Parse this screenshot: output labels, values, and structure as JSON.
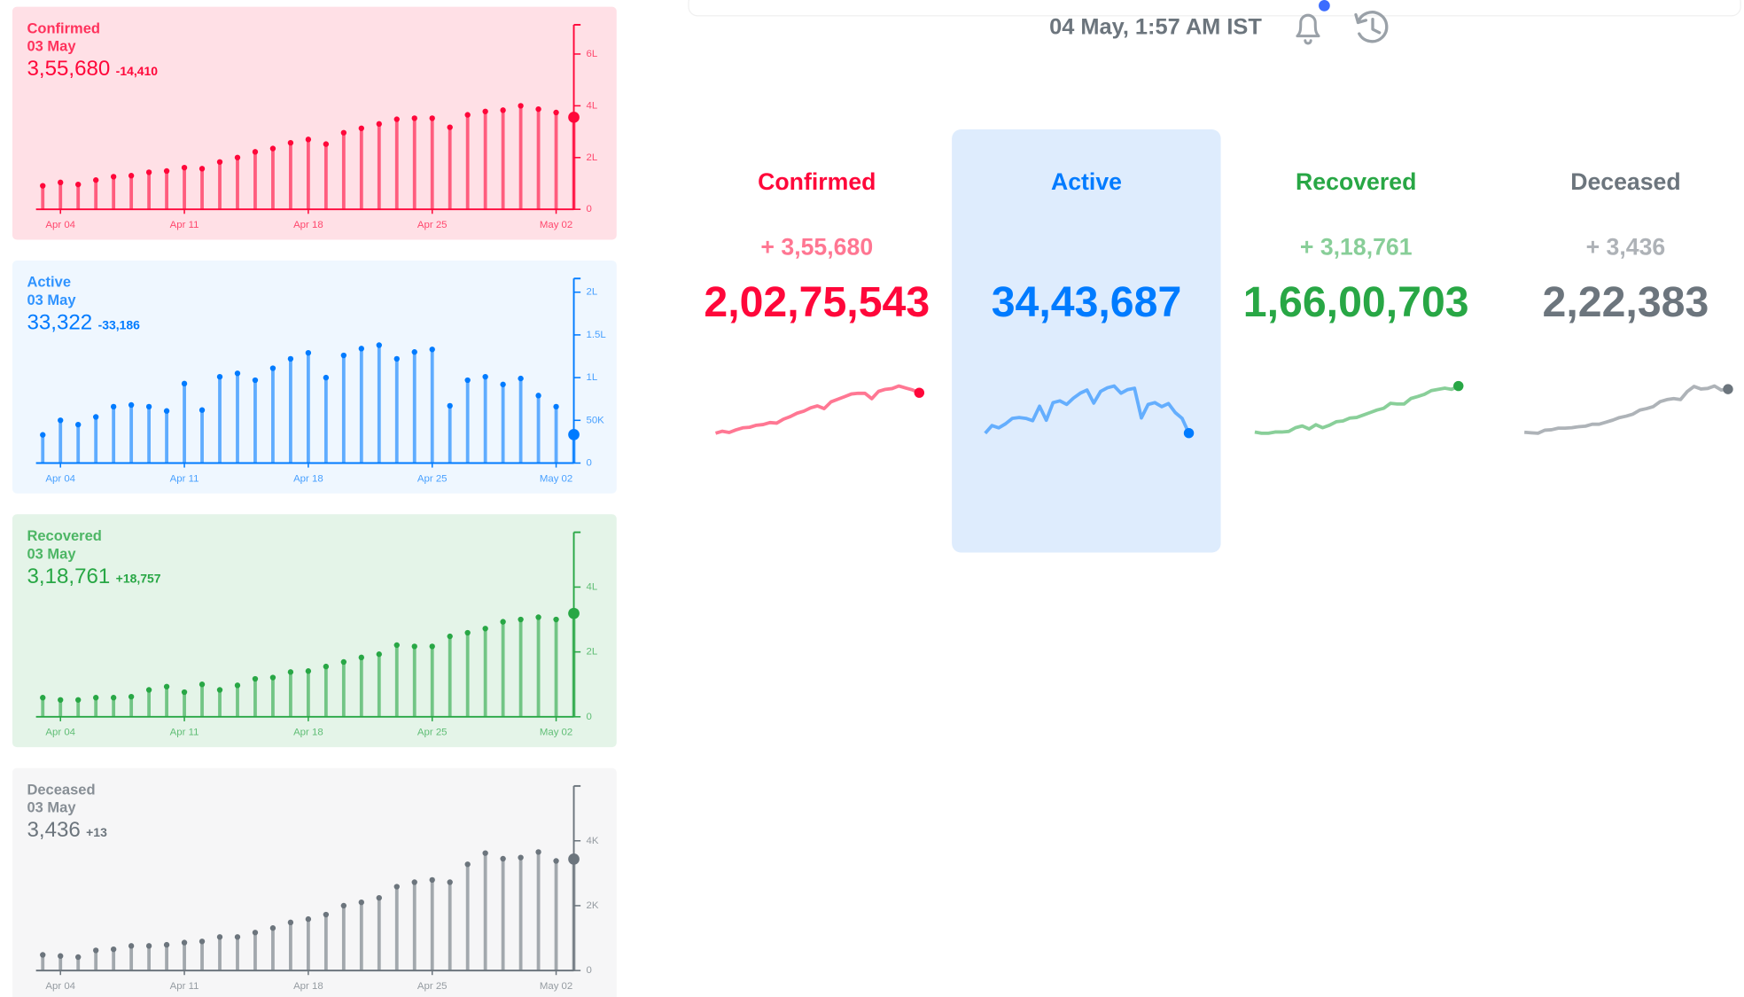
{
  "header": {
    "timestamp": "04 May, 1:57 AM IST"
  },
  "summary": [
    {
      "title": "Confirmed",
      "change": "+ 3,55,680",
      "total": "2,02,75,543"
    },
    {
      "title": "Active",
      "total": "34,43,687"
    },
    {
      "title": "Recovered",
      "change": "+ 3,18,761",
      "total": "1,66,00,703"
    },
    {
      "title": "Deceased",
      "change": "+ 3,436",
      "total": "2,22,383"
    }
  ],
  "chart_data": [
    {
      "type": "lollipop",
      "title": "Confirmed",
      "subtitle": "03 May",
      "total": "3,55,680",
      "change": "-14,410",
      "color": "#ff073a",
      "background": "#ffe0e6",
      "categories": [
        null,
        "Apr 04",
        null,
        null,
        null,
        null,
        null,
        null,
        "Apr 11",
        null,
        null,
        null,
        null,
        null,
        null,
        "Apr 18",
        null,
        null,
        null,
        null,
        null,
        null,
        "Apr 25",
        null,
        null,
        null,
        null,
        null,
        null,
        "May 02",
        null
      ],
      "values": [
        91000,
        104000,
        96000,
        113000,
        126000,
        130000,
        143000,
        148000,
        161000,
        157000,
        183000,
        200000,
        222000,
        235000,
        257000,
        270000,
        252000,
        296000,
        313000,
        330000,
        348000,
        352000,
        352000,
        317000,
        365000,
        378000,
        383000,
        400000,
        387000,
        374000,
        355680
      ],
      "ylim": [
        0,
        713000
      ],
      "yticks": [
        0,
        {
          "value": 200000,
          "label": "2L"
        },
        {
          "value": 400000,
          "label": "4L"
        },
        {
          "value": 600000,
          "label": "6L"
        }
      ]
    },
    {
      "type": "lollipop",
      "title": "Active",
      "subtitle": "03 May",
      "total": "33,322",
      "change": "-33,186",
      "color": "#007bff",
      "background": "#eff7ff",
      "categories": [
        null,
        "Apr 04",
        null,
        null,
        null,
        null,
        null,
        null,
        "Apr 11",
        null,
        null,
        null,
        null,
        null,
        null,
        "Apr 18",
        null,
        null,
        null,
        null,
        null,
        null,
        "Apr 25",
        null,
        null,
        null,
        null,
        null,
        null,
        "May 02",
        null
      ],
      "values": [
        33000,
        50000,
        45000,
        54000,
        66000,
        68000,
        66000,
        61000,
        93000,
        62000,
        101000,
        105000,
        97000,
        111000,
        122000,
        129000,
        100000,
        126000,
        134000,
        138000,
        122000,
        130000,
        133000,
        67000,
        97000,
        101000,
        92000,
        99000,
        79000,
        66000,
        33322
      ],
      "ylim": [
        0,
        216000
      ],
      "yticks": [
        0,
        {
          "value": 50000,
          "label": "50K"
        },
        {
          "value": 100000,
          "label": "1L"
        },
        {
          "value": 150000,
          "label": "1.5L"
        },
        {
          "value": 200000,
          "label": "2L"
        }
      ]
    },
    {
      "type": "lollipop",
      "title": "Recovered",
      "subtitle": "03 May",
      "total": "3,18,761",
      "change": "+18,757",
      "color": "#28a745",
      "background": "#e4f4e8",
      "categories": [
        null,
        "Apr 04",
        null,
        null,
        null,
        null,
        null,
        null,
        "Apr 11",
        null,
        null,
        null,
        null,
        null,
        null,
        "Apr 18",
        null,
        null,
        null,
        null,
        null,
        null,
        "Apr 25",
        null,
        null,
        null,
        null,
        null,
        null,
        "May 02",
        null
      ],
      "values": [
        59000,
        52000,
        52000,
        59000,
        59000,
        62000,
        83000,
        93000,
        76000,
        100000,
        83000,
        97000,
        117000,
        121000,
        138000,
        141000,
        155000,
        169000,
        183000,
        193000,
        221000,
        217000,
        217000,
        248000,
        259000,
        272000,
        293000,
        300000,
        307000,
        300000,
        318761
      ],
      "ylim": [
        0,
        569000
      ],
      "yticks": [
        0,
        {
          "value": 200000,
          "label": "2L"
        },
        {
          "value": 400000,
          "label": "4L"
        }
      ]
    },
    {
      "type": "lollipop",
      "title": "Deceased",
      "subtitle": "03 May",
      "total": "3,436",
      "change": "+13",
      "color": "#6c757d",
      "background": "#f6f6f7",
      "categories": [
        null,
        "Apr 04",
        null,
        null,
        null,
        null,
        null,
        null,
        "Apr 11",
        null,
        null,
        null,
        null,
        null,
        null,
        "Apr 18",
        null,
        null,
        null,
        null,
        null,
        null,
        "Apr 25",
        null,
        null,
        null,
        null,
        null,
        null,
        "May 02",
        null
      ],
      "values": [
        483,
        448,
        414,
        621,
        655,
        759,
        759,
        793,
        862,
        897,
        1034,
        1034,
        1172,
        1310,
        1483,
        1586,
        1724,
        2000,
        2103,
        2241,
        2586,
        2724,
        2793,
        2724,
        3276,
        3621,
        3448,
        3483,
        3655,
        3379,
        3436
      ],
      "ylim": [
        0,
        5690
      ],
      "yticks": [
        0,
        {
          "value": 2000,
          "label": "2K"
        },
        {
          "value": 4000,
          "label": "4K"
        }
      ]
    }
  ]
}
